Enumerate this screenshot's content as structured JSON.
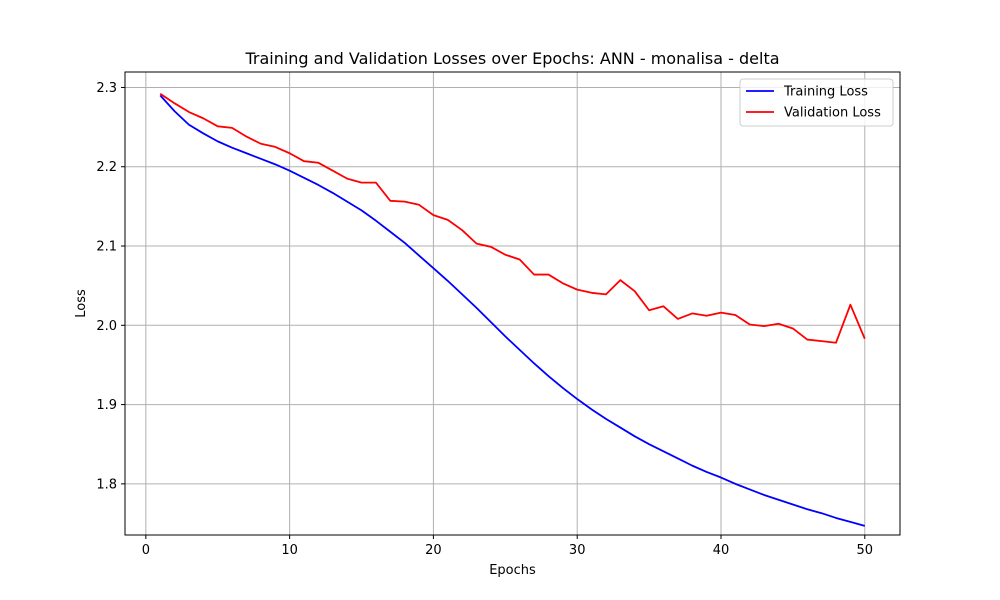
{
  "chart_data": {
    "type": "line",
    "title": "Training and Validation Losses over Epochs: ANN - monalisa - delta",
    "xlabel": "Epochs",
    "ylabel": "Loss",
    "xlim": [
      -1.45,
      52.45
    ],
    "ylim": [
      1.7355,
      2.3195
    ],
    "xticks": [
      0,
      10,
      20,
      30,
      40,
      50
    ],
    "xtick_labels": [
      "0",
      "10",
      "20",
      "30",
      "40",
      "50"
    ],
    "yticks": [
      1.8,
      1.9,
      2.0,
      2.1,
      2.2,
      2.3
    ],
    "ytick_labels": [
      "1.8",
      "1.9",
      "2.0",
      "2.1",
      "2.2",
      "2.3"
    ],
    "grid": true,
    "legend_position": "top-right",
    "x": [
      1,
      2,
      3,
      4,
      5,
      6,
      7,
      8,
      9,
      10,
      11,
      12,
      13,
      14,
      15,
      16,
      17,
      18,
      19,
      20,
      21,
      22,
      23,
      24,
      25,
      26,
      27,
      28,
      29,
      30,
      31,
      32,
      33,
      34,
      35,
      36,
      37,
      38,
      39,
      40,
      41,
      42,
      43,
      44,
      45,
      46,
      47,
      48,
      49,
      50
    ],
    "series": [
      {
        "name": "Training Loss",
        "color": "#0000ff",
        "values": [
          2.29,
          2.27,
          2.253,
          2.242,
          2.232,
          2.224,
          2.217,
          2.21,
          2.203,
          2.195,
          2.186,
          2.177,
          2.167,
          2.156,
          2.145,
          2.132,
          2.118,
          2.104,
          2.088,
          2.072,
          2.056,
          2.039,
          2.022,
          2.004,
          1.986,
          1.969,
          1.952,
          1.936,
          1.921,
          1.907,
          1.894,
          1.882,
          1.871,
          1.86,
          1.85,
          1.841,
          1.832,
          1.823,
          1.815,
          1.808,
          1.8,
          1.793,
          1.786,
          1.78,
          1.774,
          1.768,
          1.763,
          1.757,
          1.752,
          1.747
        ]
      },
      {
        "name": "Validation Loss",
        "color": "#ff0000",
        "values": [
          2.292,
          2.28,
          2.269,
          2.261,
          2.251,
          2.249,
          2.238,
          2.229,
          2.225,
          2.217,
          2.207,
          2.205,
          2.195,
          2.185,
          2.18,
          2.18,
          2.157,
          2.156,
          2.152,
          2.139,
          2.133,
          2.12,
          2.103,
          2.099,
          2.089,
          2.083,
          2.064,
          2.064,
          2.053,
          2.045,
          2.041,
          2.039,
          2.057,
          2.043,
          2.019,
          2.024,
          2.008,
          2.015,
          2.012,
          2.016,
          2.013,
          2.001,
          1.999,
          2.002,
          1.996,
          1.982,
          1.98,
          1.978,
          2.026,
          1.983
        ]
      }
    ]
  }
}
